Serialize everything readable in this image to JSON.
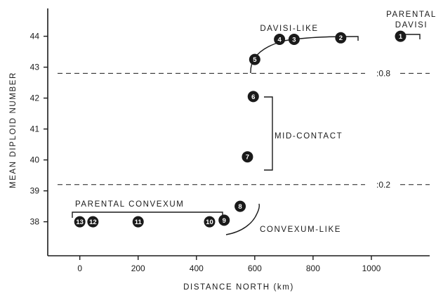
{
  "chart_data": {
    "type": "scatter",
    "title": "",
    "xlabel": "DISTANCE NORTH (km)",
    "ylabel": "MEAN DIPLOID NUMBER",
    "xlim": [
      -110,
      1200
    ],
    "ylim": [
      36.9,
      44.9
    ],
    "xticks": [
      0,
      200,
      400,
      600,
      800,
      1000
    ],
    "yticks": [
      38,
      39,
      40,
      41,
      42,
      43,
      44
    ],
    "points": [
      {
        "id": "1",
        "x": 1100,
        "y": 44.0
      },
      {
        "id": "2",
        "x": 895,
        "y": 43.95
      },
      {
        "id": "3",
        "x": 735,
        "y": 43.9
      },
      {
        "id": "4",
        "x": 685,
        "y": 43.9
      },
      {
        "id": "5",
        "x": 600,
        "y": 43.25
      },
      {
        "id": "6",
        "x": 595,
        "y": 42.05
      },
      {
        "id": "7",
        "x": 575,
        "y": 40.1
      },
      {
        "id": "8",
        "x": 550,
        "y": 38.5
      },
      {
        "id": "9",
        "x": 495,
        "y": 38.05
      },
      {
        "id": "10",
        "x": 445,
        "y": 38.0
      },
      {
        "id": "11",
        "x": 200,
        "y": 38.0
      },
      {
        "id": "12",
        "x": 45,
        "y": 38.0
      },
      {
        "id": "13",
        "x": 0,
        "y": 38.0
      }
    ],
    "thresholds": [
      {
        "label": ":0.8",
        "y": 42.8
      },
      {
        "label": ":0.2",
        "y": 39.2
      }
    ],
    "groups": [
      {
        "name": "PARENTAL DAVISI",
        "lines": [
          "PARENTAL",
          "DAVISI"
        ]
      },
      {
        "name": "DAVISI-LIKE"
      },
      {
        "name": "MID-CONTACT"
      },
      {
        "name": "PARENTAL CONVEXUM"
      },
      {
        "name": "CONVEXUM-LIKE"
      }
    ]
  }
}
